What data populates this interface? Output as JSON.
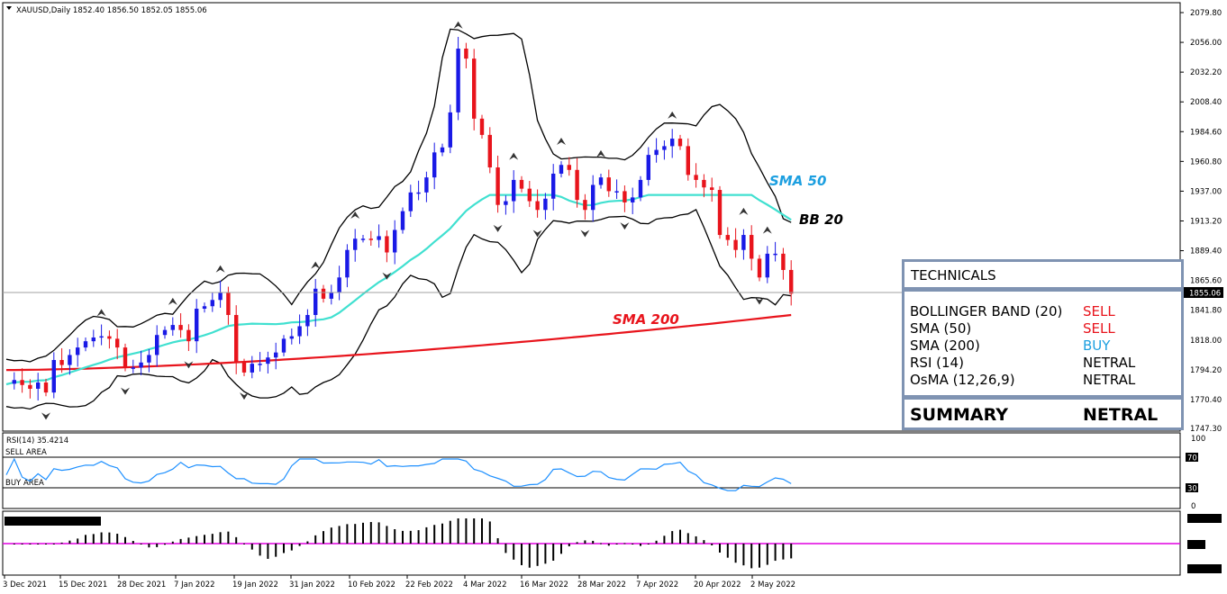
{
  "header": {
    "symbol_line": "XAUUSD,Daily  1852.40 1856.50 1852.05 1855.06",
    "current_price": "1855.06"
  },
  "price_axis": {
    "ticks": [
      "2079.80",
      "2056.00",
      "2032.20",
      "2008.40",
      "1984.60",
      "1960.80",
      "1937.00",
      "1913.20",
      "1889.40",
      "1865.60",
      "1841.80",
      "1818.00",
      "1794.20",
      "1770.40",
      "1747.30"
    ]
  },
  "date_axis": {
    "labels": [
      "3 Dec 2021",
      "15 Dec 2021",
      "28 Dec 2021",
      "7 Jan 2022",
      "19 Jan 2022",
      "31 Jan 2022",
      "10 Feb 2022",
      "22 Feb 2022",
      "4 Mar 2022",
      "16 Mar 2022",
      "28 Mar 2022",
      "7 Apr 2022",
      "20 Apr 2022",
      "2 May 2022"
    ]
  },
  "annotations": {
    "sma50": "SMA 50",
    "bb20": "BB 20",
    "sma200": "SMA 200"
  },
  "rsi_panel": {
    "title": "RSI(14) 35.4214",
    "sell_area": "SELL AREA",
    "buy_area": "BUY AREA",
    "ticks": [
      "100",
      "70",
      "30",
      "0"
    ]
  },
  "technicals": {
    "title": "TECHNICALS",
    "rows": [
      {
        "name": "BOLLINGER BAND (20)",
        "signal": "SELL",
        "color": "#e8141c"
      },
      {
        "name": "SMA (50)",
        "signal": "SELL",
        "color": "#e8141c"
      },
      {
        "name": "SMA  (200)",
        "signal": "BUY",
        "color": "#1c9fe0"
      },
      {
        "name": "RSI (14)",
        "signal": "NETRAL",
        "color": "#000000"
      },
      {
        "name": "OsMA (12,26,9)",
        "signal": "NETRAL",
        "color": "#000000"
      }
    ],
    "summary_label": "SUMMARY",
    "summary_value": "NETRAL"
  },
  "colors": {
    "bull": "#1a1ae6",
    "bear": "#e8141c",
    "sma50": "#40e0d0",
    "sma200": "#e8141c",
    "bb": "#000000",
    "rsi": "#1e90ff",
    "osma_zero": "#e000e0",
    "sma50_label": "#1c9fe0"
  },
  "chart_data": {
    "type": "candlestick",
    "symbol": "XAUUSD",
    "timeframe": "Daily",
    "ylim": [
      1747.3,
      2081
    ],
    "x": [
      "3 Dec 2021",
      "15 Dec 2021",
      "28 Dec 2021",
      "7 Jan 2022",
      "19 Jan 2022",
      "31 Jan 2022",
      "10 Feb 2022",
      "22 Feb 2022",
      "4 Mar 2022",
      "16 Mar 2022",
      "28 Mar 2022",
      "7 Apr 2022",
      "20 Apr 2022",
      "2 May 2022"
    ],
    "close_waypoints": [
      1783,
      1786,
      1782,
      1779,
      1784,
      1776,
      1802,
      1798,
      1806,
      1812,
      1817,
      1820,
      1821,
      1819,
      1812,
      1796,
      1796,
      1800,
      1806,
      1822,
      1826,
      1830,
      1826,
      1817,
      1843,
      1845,
      1850,
      1856,
      1838,
      1800,
      1792,
      1799,
      1799,
      1804,
      1808,
      1819,
      1821,
      1829,
      1838,
      1859,
      1851,
      1856,
      1868,
      1890,
      1899,
      1899,
      1898,
      1901,
      1888,
      1906,
      1921,
      1936,
      1936,
      1948,
      1968,
      1972,
      2000,
      2051,
      2043,
      1995,
      1982,
      1956,
      1926,
      1929,
      1946,
      1939,
      1929,
      1922,
      1931,
      1951,
      1958,
      1954,
      1930,
      1922,
      1942,
      1948,
      1937,
      1937,
      1928,
      1932,
      1946,
      1966,
      1970,
      1973,
      1979,
      1973,
      1950,
      1946,
      1940,
      1938,
      1902,
      1898,
      1890,
      1902,
      1883,
      1868,
      1887,
      1887,
      1874,
      1855
    ],
    "sma50_range": [
      1782,
      1934
    ],
    "sma200_range": [
      1794,
      1838
    ],
    "bb20_upper_range": [
      1823,
      2015
    ],
    "bb20_lower_range": [
      1756,
      1890
    ],
    "rsi_last": 35.4214,
    "rsi_levels": [
      70,
      30
    ],
    "rsi_ylim": [
      0,
      100
    ]
  }
}
